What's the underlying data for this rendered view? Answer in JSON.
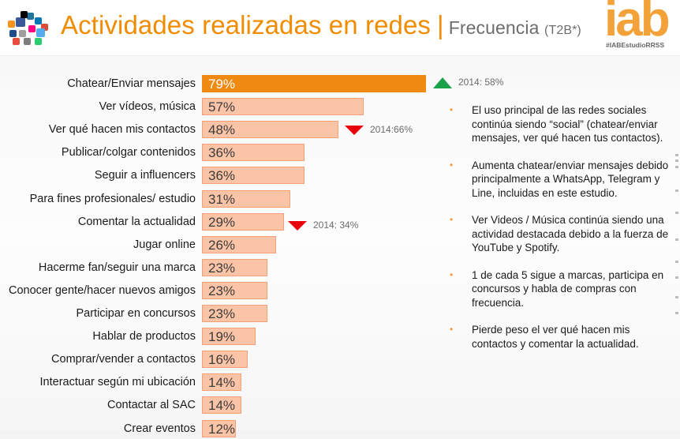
{
  "header": {
    "title": "Actividades realizadas en redes",
    "separator": "|",
    "subtitle": "Frecuencia",
    "subtitle_note": "(T2B*)",
    "brand_logo": "iab",
    "hashtag": "#IABEstudioRRSS",
    "icon": "social-media-collage-icon"
  },
  "colors": {
    "title_orange": "#f08c00",
    "top_bar": "#ee8a12",
    "bar_fill": "#fbc4a6",
    "bar_border": "#f2a177",
    "up_arrow": "#1aa14a",
    "down_arrow": "#e8000b",
    "bullet_dot": "#f39a3a"
  },
  "chart_data": {
    "type": "bar",
    "orientation": "horizontal",
    "title": "Actividades realizadas en redes | Frecuencia (T2B*)",
    "xlabel": "",
    "ylabel": "",
    "unit": "%",
    "xlim": [
      0,
      100
    ],
    "grid": false,
    "categories": [
      "Chatear/Enviar mensajes",
      "Ver vídeos, música",
      "Ver qué hacen mis contactos",
      "Publicar/colgar contenidos",
      "Seguir a influencers",
      "Para fines profesionales/ estudio",
      "Comentar la actualidad",
      "Jugar online",
      "Hacerme fan/seguir una marca",
      "Conocer gente/hacer nuevos amigos",
      "Participar en concursos",
      "Hablar de productos",
      "Comprar/vender a contactos",
      "Interactuar según mi ubicación",
      "Contactar al SAC",
      "Crear eventos"
    ],
    "values": [
      79,
      57,
      48,
      36,
      36,
      31,
      29,
      26,
      23,
      23,
      23,
      19,
      16,
      14,
      14,
      12
    ],
    "value_labels": [
      "79%",
      "57%",
      "48%",
      "36%",
      "36%",
      "31%",
      "29%",
      "26%",
      "23%",
      "23%",
      "23%",
      "19%",
      "16%",
      "14%",
      "14%",
      "12%"
    ],
    "highlighted_index": 0,
    "annotations": [
      {
        "category": "Chatear/Enviar mensajes",
        "direction": "up",
        "text": "2014: 58%",
        "value_2014": 58
      },
      {
        "category": "Ver qué hacen mis contactos",
        "direction": "down",
        "text": "2014:66%",
        "value_2014": 66
      },
      {
        "category": "Comentar la actualidad",
        "direction": "down",
        "text": "2014: 34%",
        "value_2014": 34
      }
    ]
  },
  "bullets": [
    "El uso principal de las redes sociales continúa siendo “social” (chatear/enviar mensajes, ver qué hacen tus contactos).",
    "Aumenta chatear/enviar mensajes debido principalmente a WhatsApp, Telegram y Line, incluidas en este estudio.",
    "Ver Videos / Música continúa siendo una actividad destacada debido a la fuerza de YouTube y Spotify.",
    "1 de cada 5 sigue a marcas, participa en concursos y habla de compras con frecuencia.",
    "Pierde peso el ver qué hacen mis contactos y comentar la actualidad."
  ],
  "bullet_symbol": "•"
}
